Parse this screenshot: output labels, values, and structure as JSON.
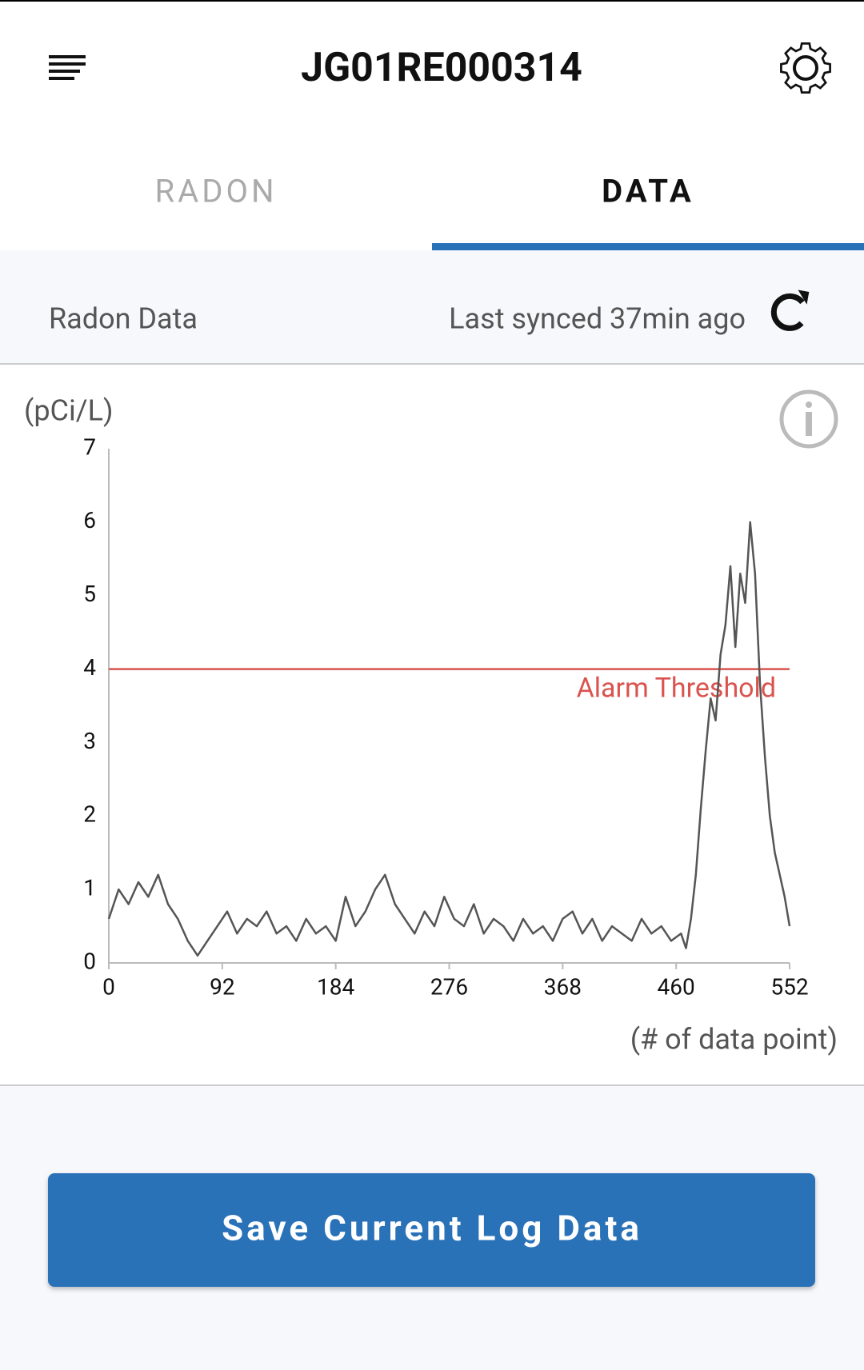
{
  "header": {
    "title": "JG01RE000314"
  },
  "tabs": [
    "RADON",
    "DATA"
  ],
  "status": {
    "label": "Radon Data",
    "sync": "Last synced 37min ago"
  },
  "chart_data": {
    "type": "line",
    "y_label": "(pCi/L)",
    "x_label": "(# of data point)",
    "x": [
      0,
      8,
      16,
      24,
      32,
      40,
      48,
      56,
      64,
      72,
      80,
      88,
      96,
      104,
      112,
      120,
      128,
      136,
      144,
      152,
      160,
      168,
      176,
      184,
      192,
      200,
      208,
      216,
      224,
      232,
      240,
      248,
      256,
      264,
      272,
      280,
      288,
      296,
      304,
      312,
      320,
      328,
      336,
      344,
      352,
      360,
      368,
      376,
      384,
      392,
      400,
      408,
      416,
      424,
      432,
      440,
      448,
      456,
      464,
      468,
      472,
      476,
      480,
      484,
      488,
      492,
      496,
      500,
      504,
      508,
      512,
      516,
      520,
      524,
      528,
      532,
      536,
      540,
      544,
      548,
      552
    ],
    "series": [
      {
        "color": "#555555",
        "values": [
          0.6,
          1.0,
          0.8,
          1.1,
          0.9,
          1.2,
          0.8,
          0.6,
          0.3,
          0.1,
          0.3,
          0.5,
          0.7,
          0.4,
          0.6,
          0.5,
          0.7,
          0.4,
          0.5,
          0.3,
          0.6,
          0.4,
          0.5,
          0.3,
          0.9,
          0.5,
          0.7,
          1.0,
          1.2,
          0.8,
          0.6,
          0.4,
          0.7,
          0.5,
          0.9,
          0.6,
          0.5,
          0.8,
          0.4,
          0.6,
          0.5,
          0.3,
          0.6,
          0.4,
          0.5,
          0.3,
          0.6,
          0.7,
          0.4,
          0.6,
          0.3,
          0.5,
          0.4,
          0.3,
          0.6,
          0.4,
          0.5,
          0.3,
          0.4,
          0.2,
          0.6,
          1.2,
          2.1,
          2.9,
          3.6,
          3.3,
          4.2,
          4.6,
          5.4,
          4.3,
          5.3,
          4.9,
          6.0,
          5.3,
          3.8,
          2.8,
          2.0,
          1.5,
          1.2,
          0.9,
          0.5
        ]
      }
    ],
    "xlim": [
      0,
      552
    ],
    "ylim": [
      0,
      7
    ],
    "xticks": [
      0,
      92,
      184,
      276,
      368,
      460,
      552
    ],
    "yticks": [
      0,
      1,
      2,
      3,
      4,
      5,
      6,
      7
    ],
    "threshold": {
      "value": 4,
      "label": "Alarm Threshold",
      "color": "#d9534f"
    }
  },
  "button": {
    "label": "Save Current Log Data"
  }
}
